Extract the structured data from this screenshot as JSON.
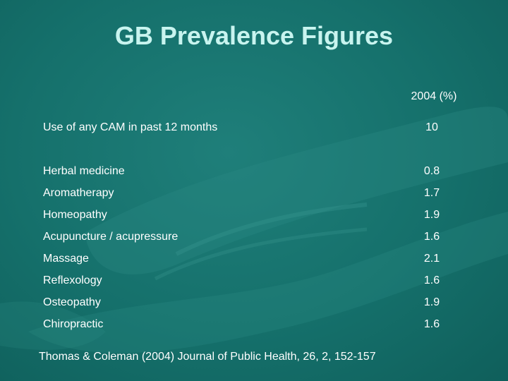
{
  "slide": {
    "title": "GB Prevalence Figures",
    "column_header": "2004 (%)",
    "rows": [
      {
        "label": "Use of any CAM in past 12 months",
        "value": "10"
      },
      {
        "label": "Herbal medicine",
        "value": "0.8"
      },
      {
        "label": "Aromatherapy",
        "value": "1.7"
      },
      {
        "label": "Homeopathy",
        "value": "1.9"
      },
      {
        "label": "Acupuncture / acupressure",
        "value": "1.6"
      },
      {
        "label": "Massage",
        "value": "2.1"
      },
      {
        "label": "Reflexology",
        "value": "1.6"
      },
      {
        "label": "Osteopathy",
        "value": "1.9"
      },
      {
        "label": "Chiropractic",
        "value": "1.6"
      }
    ],
    "citation": "Thomas & Coleman (2004)  Journal of Public Health, 26, 2, 152-157"
  },
  "colors": {
    "background": "#15706b",
    "title": "#c8f4ef",
    "text": "#ffffff"
  }
}
